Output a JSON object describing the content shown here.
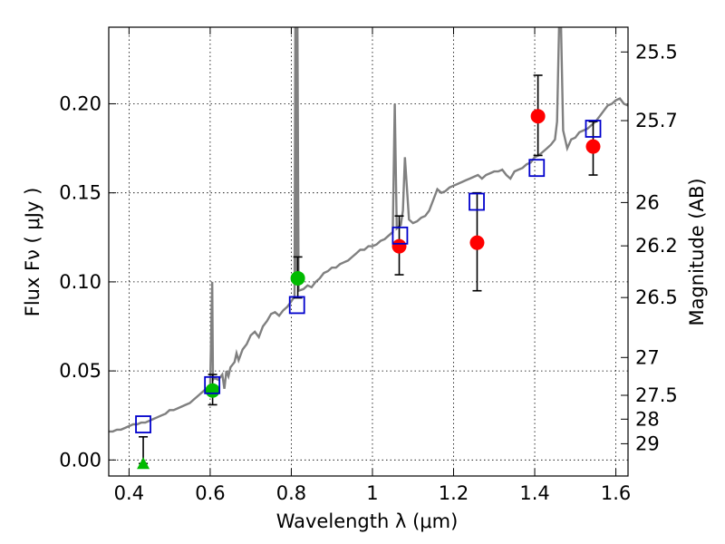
{
  "chart_data": {
    "type": "scatter",
    "xlabel": "Wavelength  λ (μm)",
    "ylabel": "Flux  Fν  ( μJy )",
    "ylabel_right": "Magnitude (AB)",
    "xlim": [
      0.35,
      1.63
    ],
    "ylim": [
      -0.009,
      0.243
    ],
    "x_ticks": [
      0.4,
      0.6,
      0.8,
      1.0,
      1.2,
      1.4,
      1.6
    ],
    "x_tick_labels": [
      "0.4",
      "0.6",
      "0.8",
      "1",
      "1.2",
      "1.4",
      "1.6"
    ],
    "y_ticks": [
      0.0,
      0.05,
      0.1,
      0.15,
      0.2
    ],
    "y_tick_labels": [
      "0.00",
      "0.05",
      "0.10",
      "0.15",
      "0.20"
    ],
    "mag_ticks": [
      25.5,
      25.7,
      26,
      26.2,
      26.5,
      27,
      27.5,
      28,
      29
    ],
    "mag_tick_labels": [
      "25.5",
      "25.7",
      "26",
      "26.2",
      "26.5",
      "27",
      "27.5",
      "28",
      "29"
    ],
    "grid": true,
    "colors": {
      "spectrum": "#808080",
      "model": "#0000cc",
      "observed_red": "#ff0000",
      "observed_green": "#00bb00",
      "errorbar": "#000000"
    },
    "series": [
      {
        "kind": "model_spectrum",
        "points": [
          [
            0.35,
            0.016
          ],
          [
            0.36,
            0.016
          ],
          [
            0.37,
            0.017
          ],
          [
            0.38,
            0.017
          ],
          [
            0.39,
            0.018
          ],
          [
            0.4,
            0.019
          ],
          [
            0.41,
            0.02
          ],
          [
            0.42,
            0.02
          ],
          [
            0.43,
            0.021
          ],
          [
            0.44,
            0.021
          ],
          [
            0.45,
            0.022
          ],
          [
            0.46,
            0.023
          ],
          [
            0.47,
            0.024
          ],
          [
            0.48,
            0.025
          ],
          [
            0.49,
            0.026
          ],
          [
            0.5,
            0.028
          ],
          [
            0.51,
            0.028
          ],
          [
            0.52,
            0.029
          ],
          [
            0.53,
            0.03
          ],
          [
            0.54,
            0.031
          ],
          [
            0.55,
            0.032
          ],
          [
            0.56,
            0.034
          ],
          [
            0.57,
            0.036
          ],
          [
            0.58,
            0.038
          ],
          [
            0.59,
            0.04
          ],
          [
            0.6,
            0.042
          ],
          [
            0.605,
            0.1
          ],
          [
            0.607,
            0.045
          ],
          [
            0.61,
            0.046
          ],
          [
            0.62,
            0.045
          ],
          [
            0.63,
            0.048
          ],
          [
            0.635,
            0.04
          ],
          [
            0.64,
            0.05
          ],
          [
            0.645,
            0.047
          ],
          [
            0.65,
            0.052
          ],
          [
            0.66,
            0.055
          ],
          [
            0.665,
            0.06
          ],
          [
            0.67,
            0.056
          ],
          [
            0.68,
            0.062
          ],
          [
            0.69,
            0.065
          ],
          [
            0.7,
            0.07
          ],
          [
            0.71,
            0.072
          ],
          [
            0.72,
            0.069
          ],
          [
            0.73,
            0.075
          ],
          [
            0.74,
            0.078
          ],
          [
            0.75,
            0.082
          ],
          [
            0.76,
            0.083
          ],
          [
            0.77,
            0.081
          ],
          [
            0.78,
            0.084
          ],
          [
            0.79,
            0.086
          ],
          [
            0.8,
            0.089
          ],
          [
            0.808,
            0.092
          ],
          [
            0.81,
            0.243
          ],
          [
            0.813,
            0.1
          ],
          [
            0.815,
            0.243
          ],
          [
            0.818,
            0.095
          ],
          [
            0.83,
            0.096
          ],
          [
            0.84,
            0.098
          ],
          [
            0.85,
            0.097
          ],
          [
            0.86,
            0.1
          ],
          [
            0.87,
            0.102
          ],
          [
            0.88,
            0.105
          ],
          [
            0.89,
            0.106
          ],
          [
            0.9,
            0.108
          ],
          [
            0.91,
            0.108
          ],
          [
            0.92,
            0.11
          ],
          [
            0.93,
            0.111
          ],
          [
            0.94,
            0.112
          ],
          [
            0.95,
            0.114
          ],
          [
            0.96,
            0.116
          ],
          [
            0.97,
            0.118
          ],
          [
            0.98,
            0.118
          ],
          [
            0.99,
            0.12
          ],
          [
            1.0,
            0.12
          ],
          [
            1.01,
            0.121
          ],
          [
            1.02,
            0.123
          ],
          [
            1.03,
            0.124
          ],
          [
            1.04,
            0.126
          ],
          [
            1.05,
            0.128
          ],
          [
            1.055,
            0.2
          ],
          [
            1.06,
            0.13
          ],
          [
            1.07,
            0.132
          ],
          [
            1.075,
            0.14
          ],
          [
            1.08,
            0.17
          ],
          [
            1.09,
            0.135
          ],
          [
            1.1,
            0.133
          ],
          [
            1.11,
            0.134
          ],
          [
            1.12,
            0.136
          ],
          [
            1.13,
            0.137
          ],
          [
            1.14,
            0.14
          ],
          [
            1.15,
            0.146
          ],
          [
            1.16,
            0.152
          ],
          [
            1.17,
            0.15
          ],
          [
            1.18,
            0.151
          ],
          [
            1.19,
            0.153
          ],
          [
            1.2,
            0.154
          ],
          [
            1.21,
            0.155
          ],
          [
            1.22,
            0.156
          ],
          [
            1.23,
            0.157
          ],
          [
            1.24,
            0.158
          ],
          [
            1.25,
            0.159
          ],
          [
            1.26,
            0.16
          ],
          [
            1.27,
            0.158
          ],
          [
            1.28,
            0.16
          ],
          [
            1.29,
            0.161
          ],
          [
            1.3,
            0.162
          ],
          [
            1.31,
            0.162
          ],
          [
            1.32,
            0.163
          ],
          [
            1.33,
            0.16
          ],
          [
            1.34,
            0.158
          ],
          [
            1.35,
            0.162
          ],
          [
            1.36,
            0.163
          ],
          [
            1.37,
            0.164
          ],
          [
            1.38,
            0.166
          ],
          [
            1.39,
            0.167
          ],
          [
            1.4,
            0.17
          ],
          [
            1.41,
            0.171
          ],
          [
            1.42,
            0.173
          ],
          [
            1.43,
            0.175
          ],
          [
            1.44,
            0.177
          ],
          [
            1.45,
            0.18
          ],
          [
            1.455,
            0.19
          ],
          [
            1.46,
            0.243
          ],
          [
            1.465,
            0.243
          ],
          [
            1.47,
            0.185
          ],
          [
            1.48,
            0.175
          ],
          [
            1.49,
            0.18
          ],
          [
            1.5,
            0.181
          ],
          [
            1.51,
            0.184
          ],
          [
            1.52,
            0.185
          ],
          [
            1.53,
            0.186
          ],
          [
            1.54,
            0.188
          ],
          [
            1.55,
            0.19
          ],
          [
            1.56,
            0.193
          ],
          [
            1.57,
            0.196
          ],
          [
            1.58,
            0.199
          ],
          [
            1.59,
            0.2
          ],
          [
            1.6,
            0.202
          ],
          [
            1.61,
            0.203
          ],
          [
            1.62,
            0.2
          ],
          [
            1.63,
            0.199
          ]
        ]
      },
      {
        "kind": "model_photometry",
        "points": [
          [
            0.435,
            0.02
          ],
          [
            0.605,
            0.042
          ],
          [
            0.814,
            0.087
          ],
          [
            1.068,
            0.126
          ],
          [
            1.257,
            0.145
          ],
          [
            1.405,
            0.164
          ],
          [
            1.544,
            0.186
          ]
        ]
      },
      {
        "kind": "observed",
        "points": [
          {
            "x": 0.435,
            "y": -0.002,
            "lo": -0.002,
            "hi": 0.013,
            "marker": "triangle",
            "color": "green"
          },
          {
            "x": 0.606,
            "y": 0.039,
            "lo": 0.031,
            "hi": 0.048,
            "marker": "circle",
            "color": "green"
          },
          {
            "x": 0.816,
            "y": 0.102,
            "lo": 0.091,
            "hi": 0.114,
            "marker": "circle",
            "color": "green"
          },
          {
            "x": 1.066,
            "y": 0.12,
            "lo": 0.104,
            "hi": 0.137,
            "marker": "circle",
            "color": "red"
          },
          {
            "x": 1.258,
            "y": 0.122,
            "lo": 0.095,
            "hi": 0.15,
            "marker": "circle",
            "color": "red"
          },
          {
            "x": 1.408,
            "y": 0.193,
            "lo": 0.171,
            "hi": 0.216,
            "marker": "circle",
            "color": "red"
          },
          {
            "x": 1.544,
            "y": 0.176,
            "lo": 0.16,
            "hi": 0.19,
            "marker": "circle",
            "color": "red"
          }
        ]
      }
    ]
  }
}
